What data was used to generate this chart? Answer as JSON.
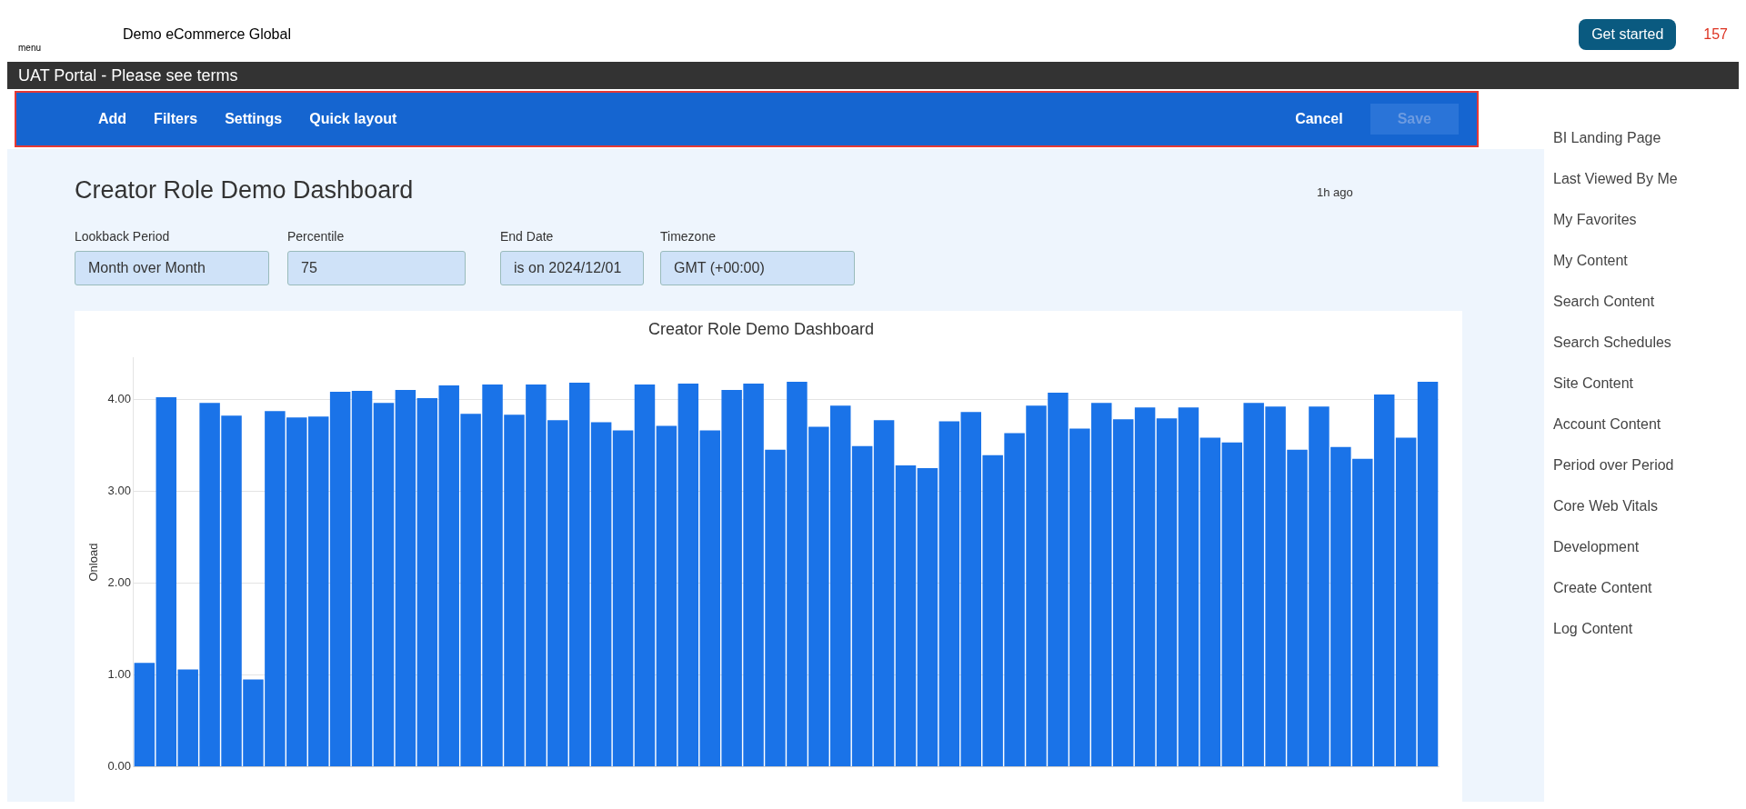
{
  "chart_data": {
    "type": "bar",
    "title": "Creator Role Demo Dashboard",
    "ylabel": "Onload",
    "color": "#1a73e8",
    "categories": [
      null,
      null,
      null,
      null,
      null,
      null,
      null,
      null,
      null,
      null,
      null,
      null,
      null,
      null,
      null,
      null,
      null,
      null,
      null,
      null,
      null,
      null,
      null,
      null,
      null,
      null,
      null,
      null,
      null,
      null,
      null,
      null,
      null,
      null,
      null,
      null,
      null,
      null,
      null,
      null,
      null,
      null,
      null,
      null,
      null,
      null,
      null,
      null,
      null,
      null,
      null,
      null,
      null,
      null,
      null,
      null,
      null,
      null,
      null,
      null
    ],
    "values": [
      1.13,
      4.02,
      1.06,
      3.96,
      3.82,
      0.95,
      3.87,
      3.8,
      3.81,
      4.08,
      4.09,
      3.96,
      4.1,
      4.01,
      4.15,
      3.84,
      4.16,
      3.83,
      4.16,
      3.77,
      4.18,
      3.75,
      3.66,
      4.16,
      3.71,
      4.17,
      3.66,
      4.1,
      4.17,
      3.45,
      4.19,
      3.7,
      3.93,
      3.49,
      3.77,
      3.28,
      3.25,
      3.76,
      3.86,
      3.39,
      3.63,
      3.93,
      4.07,
      3.68,
      3.96,
      3.78,
      3.91,
      3.79,
      3.91,
      3.58,
      3.53,
      3.96,
      3.92,
      3.45,
      3.92,
      3.48,
      3.35,
      4.05,
      3.58,
      4.19
    ],
    "ylim": [
      0,
      4.45
    ],
    "yticks": [
      {
        "value": 0,
        "label": "0.00"
      },
      {
        "value": 1,
        "label": "1.00"
      },
      {
        "value": 2,
        "label": "2.00"
      },
      {
        "value": 3,
        "label": "3.00"
      },
      {
        "value": 4,
        "label": "4.00"
      }
    ],
    "grid": "y",
    "legend": false,
    "annotations": [
      "menu",
      "Demo eCommerce Global",
      "Get started",
      "157",
      "Add",
      "Filters",
      "Settings",
      "Quick layout",
      "Cancel",
      "Save",
      "Creator Role Demo Dashboard",
      "1h ago",
      "Lookback Period",
      "Month over Month",
      "Percentile",
      "75",
      "End Date",
      "is on 2024/12/01",
      "Timezone",
      "GMT (+00:00)",
      "UAT Portal - Please see terms",
      "BI Landing Page",
      "Last Viewed By Me",
      "My Favorites",
      "My Content",
      "Search Content",
      "Search Schedules",
      "Site Content",
      "Account Content",
      "Period over Period",
      "Core Web Vitals",
      "Development",
      "Create Content",
      "Log Content"
    ]
  }
}
